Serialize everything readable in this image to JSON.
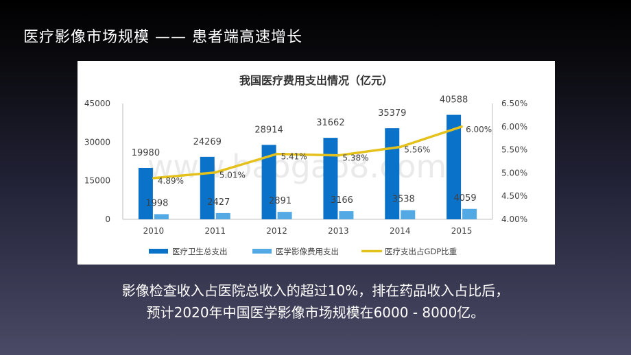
{
  "slide": {
    "title": "医疗影像市场规模 —— 患者端高速增长",
    "caption_line1": "影像检查收入占医院总收入的超过10%，排在药品收入占比后，",
    "caption_line2": "预计2020年中国医学影像市场规模在6000 - 8000亿。"
  },
  "watermark": "www.baogao8.com",
  "colors": {
    "series1": "#0b72c9",
    "series2": "#52a9e3",
    "series3": "#e4c21b"
  },
  "chart_data": {
    "type": "bar",
    "title": "我国医疗费用支出情况（亿元）",
    "categories": [
      "2010",
      "2011",
      "2012",
      "2013",
      "2014",
      "2015"
    ],
    "ylim": [
      0,
      45000
    ],
    "yticks": [
      "0",
      "15000",
      "30000",
      "45000"
    ],
    "y2lim": [
      4.0,
      6.5
    ],
    "y2ticks": [
      "4.00%",
      "4.50%",
      "5.00%",
      "5.50%",
      "6.00%",
      "6.50%"
    ],
    "series": [
      {
        "name": "医疗卫生总支出",
        "type": "bar",
        "values": [
          19980,
          24269,
          28914,
          31662,
          35379,
          40588
        ],
        "labels": [
          "19980",
          "24269",
          "28914",
          "31662",
          "35379",
          "40588"
        ]
      },
      {
        "name": "医学影像费用支出",
        "type": "bar",
        "values": [
          1998,
          2427,
          2891,
          3166,
          3538,
          4059
        ],
        "labels": [
          "1998",
          "2427",
          "2891",
          "3166",
          "3538",
          "4059"
        ]
      },
      {
        "name": "医疗支出占GDP比重",
        "type": "line",
        "axis": "right",
        "values": [
          4.89,
          5.01,
          5.41,
          5.38,
          5.56,
          6.0
        ],
        "labels": [
          "4.89%",
          "5.01%",
          "5.41%",
          "5.38%",
          "5.56%",
          "6.00%"
        ]
      }
    ],
    "legend_position": "bottom"
  }
}
